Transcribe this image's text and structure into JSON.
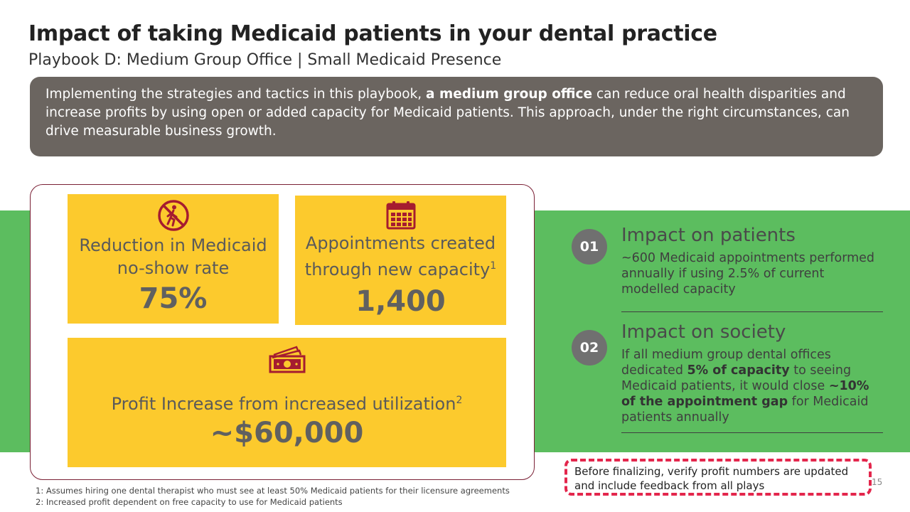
{
  "header": {
    "title": "Impact of taking Medicaid patients in your dental practice",
    "subtitle": "Playbook D: Medium Group Office | Small Medicaid Presence"
  },
  "intro": {
    "text_before": "Implementing the strategies and tactics in this playbook, ",
    "text_bold": "a medium group office",
    "text_after": " can reduce oral health disparities and increase profits by using open or added capacity for Medicaid patients. This approach, under the right circumstances, can drive measurable business growth."
  },
  "tiles": [
    {
      "icon": "no-walking-icon",
      "label": "Reduction in Medicaid no-show rate",
      "footnote_ref": "",
      "value": "75%"
    },
    {
      "icon": "calendar-icon",
      "label": "Appointments created through new capacity",
      "footnote_ref": "1",
      "value": "1,400"
    },
    {
      "icon": "cash-icon",
      "label": "Profit Increase from increased utilization",
      "footnote_ref": "2",
      "value": "~$60,000"
    }
  ],
  "impacts": [
    {
      "number": "01",
      "heading": "Impact on patients",
      "body": "~600 Medicaid appointments performed annually if using 2.5% of current modelled capacity"
    },
    {
      "number": "02",
      "heading": "Impact on society",
      "body_parts": [
        "If all medium group dental offices dedicated ",
        "5% of capacity",
        " to seeing Medicaid patients, it would close ",
        "~10% of the appointment gap",
        " for Medicaid patients annually"
      ]
    }
  ],
  "note": "Before finalizing, verify profit numbers are updated and include feedback from all plays",
  "page_number": "15",
  "footnotes": [
    "1: Assumes hiring one dental therapist  who must see at least 50% Medicaid patients for their licensure agreements",
    "2: Increased profit dependent on free capacity to use for Medicaid patients"
  ],
  "colors": {
    "tile": "#fcca2d",
    "green_band": "#5cbd5f",
    "intro_box": "#6b6560",
    "icon": "#a51c30",
    "note_border": "#e3264c"
  }
}
